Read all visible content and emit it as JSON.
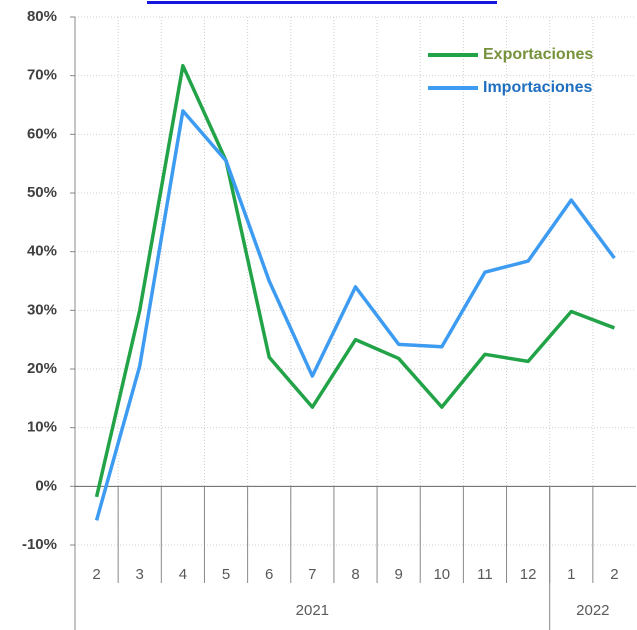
{
  "chart_data": {
    "type": "line",
    "categories": [
      "2",
      "3",
      "4",
      "5",
      "6",
      "7",
      "8",
      "9",
      "10",
      "11",
      "12",
      "1",
      "2"
    ],
    "x_groups": [
      {
        "label": "2021",
        "span": 11
      },
      {
        "label": "2022",
        "span": 2
      }
    ],
    "series": [
      {
        "name": "Exportaciones",
        "color": "#22a348",
        "label_color": "#76923c",
        "values": [
          -1.8,
          30,
          71.7,
          55.5,
          22,
          13.5,
          25,
          21.8,
          13.5,
          22.5,
          21.3,
          29.8,
          27
        ]
      },
      {
        "name": "Importaciones",
        "color": "#3d9cf2",
        "label_color": "#1f6fc0",
        "values": [
          -5.8,
          20.5,
          64,
          55.5,
          35,
          18.8,
          34,
          24.2,
          23.8,
          36.5,
          38.4,
          48.8,
          38.9
        ]
      }
    ],
    "ylim": [
      -10,
      80
    ],
    "yticks": [
      {
        "value": -10,
        "label": "-10%"
      },
      {
        "value": 0,
        "label": "0%"
      },
      {
        "value": 10,
        "label": "10%"
      },
      {
        "value": 20,
        "label": "20%"
      },
      {
        "value": 30,
        "label": "30%"
      },
      {
        "value": 40,
        "label": "40%"
      },
      {
        "value": 50,
        "label": "50%"
      },
      {
        "value": 60,
        "label": "60%"
      },
      {
        "value": 70,
        "label": "70%"
      },
      {
        "value": 80,
        "label": "80%"
      }
    ],
    "grid": true,
    "legend": "upper right"
  }
}
